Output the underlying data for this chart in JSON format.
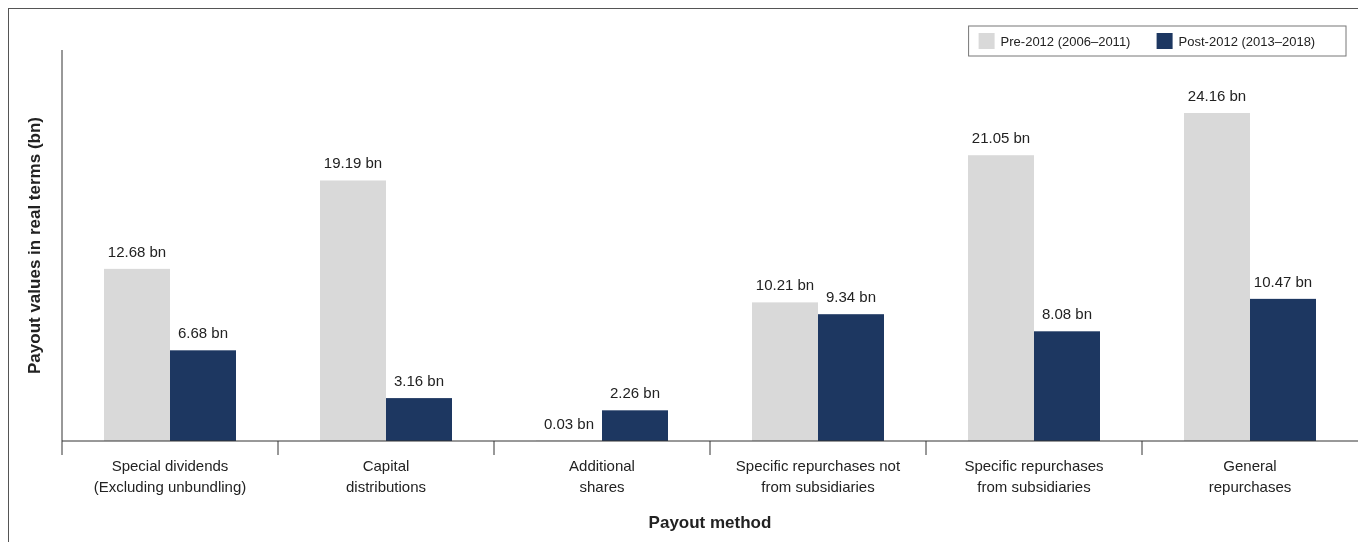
{
  "chart_data": {
    "type": "bar",
    "xlabel": "Payout method",
    "ylabel": "Payout values in real terms (bn)",
    "categories": [
      "Special dividends\n(Excluding unbundling)",
      "Capital\ndistributions",
      "Additional\nshares",
      "Specific repurchases not\nfrom subsidiaries",
      "Specific repurchases\nfrom subsidiaries",
      "General\nrepurchases"
    ],
    "series": [
      {
        "name": "Pre-2012 (2006–2011)",
        "color": "#d9d9d9",
        "values": [
          12.68,
          19.19,
          0.03,
          10.21,
          21.05,
          24.16
        ],
        "value_labels": [
          "12.68 bn",
          "19.19 bn",
          "0.03 bn",
          "10.21 bn",
          "21.05 bn",
          "24.16 bn"
        ]
      },
      {
        "name": "Post-2012 (2013–2018)",
        "color": "#1d3761",
        "values": [
          6.68,
          3.16,
          2.26,
          9.34,
          8.08,
          10.47
        ],
        "value_labels": [
          "6.68 bn",
          "3.16 bn",
          "2.26 bn",
          "9.34 bn",
          "8.08 bn",
          "10.47 bn"
        ]
      }
    ],
    "legend": "top right"
  }
}
